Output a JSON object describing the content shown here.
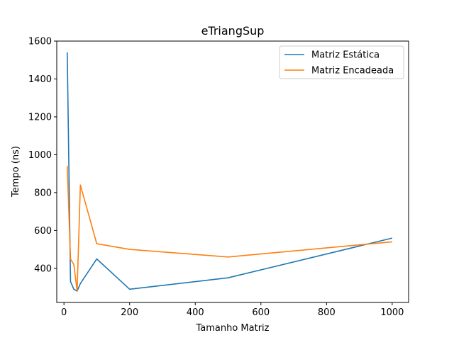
{
  "chart_data": {
    "type": "line",
    "title": "eTriangSup",
    "xlabel": "Tamanho Matriz",
    "ylabel": "Tempo (ns)",
    "xlim": [
      -22,
      1050
    ],
    "ylim": [
      220,
      1600
    ],
    "xticks": [
      0,
      200,
      400,
      600,
      800,
      1000
    ],
    "yticks": [
      400,
      600,
      800,
      1000,
      1200,
      1400,
      1600
    ],
    "grid": false,
    "legend_position": "top-right",
    "series": [
      {
        "name": "Matriz Estática",
        "color": "#1f77b4",
        "x": [
          10,
          20,
          30,
          40,
          50,
          100,
          200,
          500,
          1000
        ],
        "y": [
          1540,
          330,
          290,
          280,
          320,
          450,
          290,
          350,
          560
        ]
      },
      {
        "name": "Matriz Encadeada",
        "color": "#ff7f0e",
        "x": [
          10,
          20,
          30,
          40,
          50,
          100,
          200,
          500,
          1000
        ],
        "y": [
          940,
          450,
          420,
          280,
          840,
          530,
          500,
          460,
          540
        ]
      }
    ]
  }
}
